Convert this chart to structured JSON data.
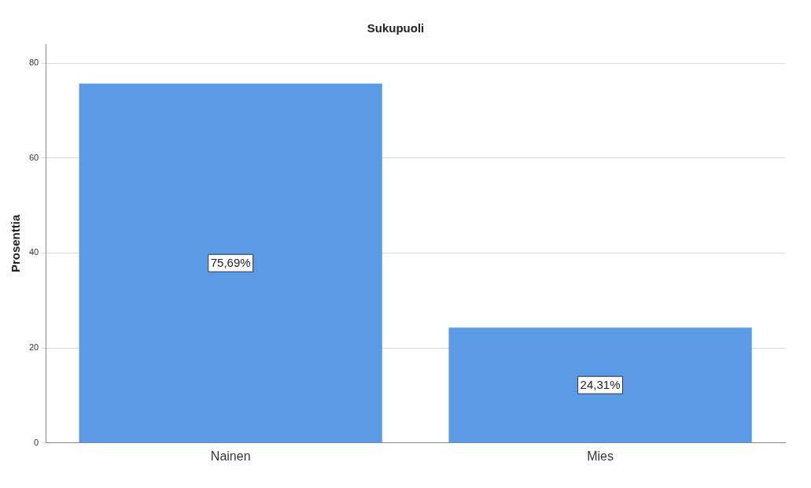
{
  "chart_data": {
    "type": "bar",
    "title": "Sukupuoli",
    "ylabel": "Prosenttia",
    "categories": [
      "Nainen",
      "Mies"
    ],
    "values": [
      75.69,
      24.31
    ],
    "value_labels": [
      "75,69%",
      "24,31%"
    ],
    "color": "#5b9be6",
    "ylim": [
      0,
      84
    ],
    "yticks": [
      0,
      20,
      40,
      60,
      80
    ],
    "grid": "y"
  }
}
